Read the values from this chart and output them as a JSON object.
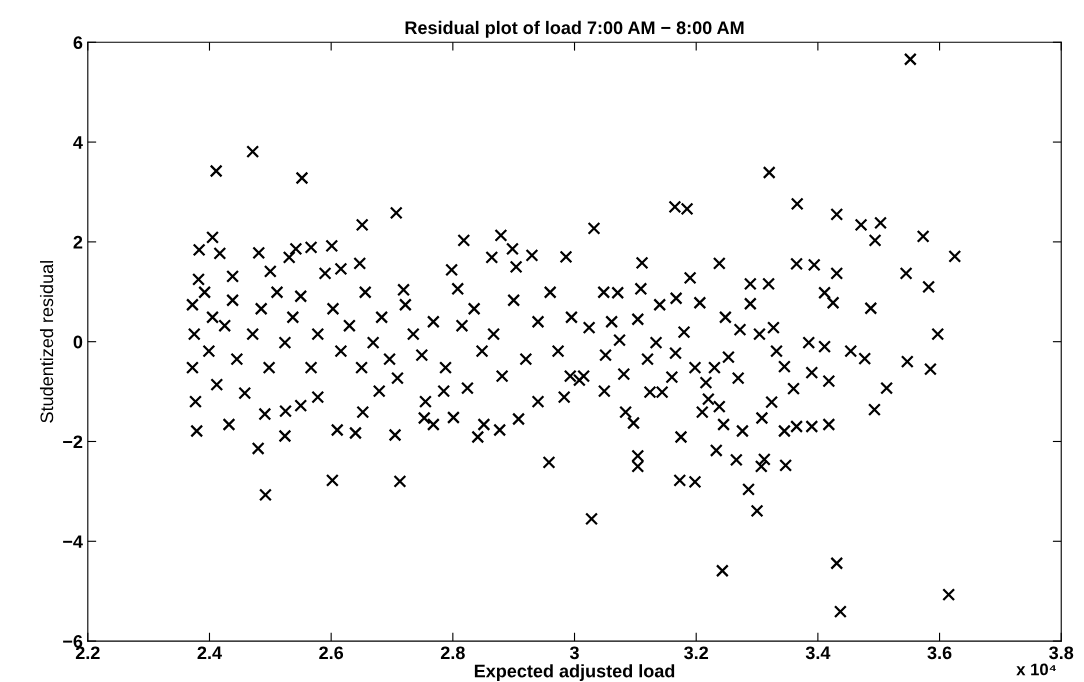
{
  "chart_data": {
    "type": "scatter",
    "title": "Residual plot of load 7:00 AM − 8:00 AM",
    "xlabel": "Expected adjusted load",
    "ylabel": "Studentized residual",
    "annotations": [
      "x 10⁴"
    ],
    "xlim": [
      2.2,
      3.8
    ],
    "xticks": [
      2.2,
      2.4,
      2.6,
      2.8,
      3,
      3.2,
      3.4,
      3.6,
      3.8
    ],
    "ylim": [
      -6,
      6
    ],
    "yticks": [
      {
        "value": -6,
        "label": "−6"
      },
      {
        "value": -4,
        "label": "−4"
      },
      {
        "value": -2,
        "label": "−2"
      },
      0,
      2,
      4,
      6
    ],
    "marker": "cross",
    "grid": false,
    "legend": false,
    "series": [
      {
        "color": "#000000",
        "x": [
          2.411,
          2.471,
          2.552,
          2.707,
          2.651,
          2.602,
          2.713,
          2.492,
          2.48,
          2.524,
          2.61,
          2.64,
          2.705,
          2.958,
          2.879,
          2.818,
          2.898,
          2.93,
          2.986,
          2.601,
          2.567,
          2.542,
          2.531,
          2.481,
          2.405,
          2.383,
          2.417,
          2.5,
          2.382,
          2.438,
          2.59,
          2.616,
          2.647,
          2.798,
          2.808,
          2.864,
          2.904,
          2.719,
          2.379,
          2.432,
          2.491,
          2.525,
          2.55,
          2.578,
          2.652,
          2.753,
          2.768,
          2.801,
          2.841,
          2.851,
          2.877,
          2.908,
          2.94,
          2.983,
          2.824,
          2.785,
          2.755,
          2.679,
          2.709,
          2.372,
          2.375,
          2.372,
          2.377,
          2.392,
          2.405,
          2.399,
          2.412,
          2.425,
          2.438,
          2.445,
          2.458,
          2.471,
          2.485,
          2.498,
          2.511,
          2.524,
          2.537,
          2.55,
          2.567,
          2.578,
          2.603,
          2.616,
          2.63,
          2.65,
          2.656,
          2.669,
          2.683,
          2.696,
          2.722,
          2.735,
          2.749,
          2.768,
          2.788,
          2.815,
          2.835,
          2.848,
          2.867,
          2.881,
          2.9,
          2.92,
          2.94,
          2.96,
          2.973,
          2.993,
          3.552,
          3.32,
          3.366,
          3.165,
          3.185,
          3.032,
          3.431,
          3.471,
          3.503,
          3.494,
          3.573,
          3.625,
          3.545,
          3.582,
          3.111,
          3.238,
          3.365,
          3.394,
          3.431,
          3.19,
          3.289,
          3.319,
          3.411,
          3.425,
          3.487,
          3.597,
          3.547,
          3.585,
          3.513,
          3.493,
          3.385,
          3.411,
          3.454,
          3.477,
          3.39,
          3.418,
          3.36,
          3.345,
          3.327,
          3.289,
          3.248,
          3.272,
          3.304,
          3.332,
          3.253,
          3.23,
          3.269,
          3.324,
          3.308,
          3.345,
          3.365,
          3.39,
          3.418,
          3.276,
          3.245,
          3.238,
          3.22,
          3.21,
          3.216,
          3.198,
          3.175,
          3.233,
          3.266,
          3.312,
          3.347,
          3.307,
          3.286,
          3.3,
          3.173,
          3.198,
          3.104,
          3.104,
          3.028,
          3.243,
          3.431,
          3.437,
          3.615,
          3.084,
          3.097,
          3.049,
          3.081,
          3.124,
          3.144,
          3.16,
          3.12,
          3.074,
          3.051,
          3.008,
          3.015,
          3.024,
          3.048,
          3.071,
          3.109,
          3.14,
          3.167,
          3.206,
          3.061,
          3.104,
          3.134,
          3.166,
          3.18,
          2.995
        ],
        "values": [
          3.42,
          3.81,
          3.28,
          2.58,
          2.34,
          -2.78,
          -2.8,
          -3.07,
          -2.14,
          -1.89,
          -1.77,
          -1.83,
          -1.87,
          -2.42,
          2.13,
          2.03,
          1.86,
          1.73,
          1.7,
          1.92,
          1.89,
          1.86,
          1.69,
          1.78,
          2.09,
          1.84,
          1.77,
          1.41,
          1.25,
          1.31,
          1.37,
          1.46,
          1.57,
          1.44,
          1.06,
          1.69,
          1.5,
          1.04,
          -1.79,
          -1.66,
          -1.45,
          -1.39,
          -1.28,
          -1.11,
          -1.41,
          -1.53,
          -1.66,
          -1.52,
          -1.91,
          -1.66,
          -1.77,
          -1.55,
          -1.2,
          -1.11,
          -0.93,
          -0.99,
          -1.2,
          -0.99,
          -0.73,
          0.74,
          0.15,
          -0.52,
          -1.2,
          0.99,
          0.49,
          -0.19,
          -0.86,
          0.32,
          0.83,
          -0.35,
          -1.03,
          0.15,
          0.66,
          -0.52,
          0.99,
          -0.02,
          0.49,
          0.91,
          -0.52,
          0.15,
          0.66,
          -0.19,
          0.32,
          -0.52,
          0.99,
          -0.02,
          0.49,
          -0.35,
          0.74,
          0.15,
          -0.27,
          0.4,
          -0.52,
          0.32,
          0.66,
          -0.19,
          0.15,
          -0.69,
          0.83,
          -0.35,
          0.4,
          0.99,
          -0.19,
          -0.69,
          5.66,
          3.39,
          2.76,
          2.7,
          2.66,
          2.27,
          2.55,
          2.34,
          2.38,
          2.03,
          2.11,
          1.71,
          1.37,
          1.1,
          1.58,
          1.57,
          1.56,
          1.54,
          1.37,
          1.28,
          1.16,
          1.16,
          0.98,
          0.78,
          0.67,
          0.15,
          -0.4,
          -0.55,
          -0.93,
          -1.36,
          -0.02,
          -0.1,
          -0.19,
          -0.34,
          -0.62,
          -0.79,
          -0.94,
          -0.5,
          0.28,
          0.76,
          0.49,
          0.24,
          0.15,
          -0.19,
          -0.31,
          -0.52,
          -0.73,
          -1.21,
          -1.53,
          -1.79,
          -1.7,
          -1.7,
          -1.66,
          -1.79,
          -1.66,
          -1.3,
          -1.15,
          -1.41,
          -0.82,
          -0.52,
          -1.91,
          -2.18,
          -2.37,
          -2.36,
          -2.48,
          -2.5,
          -2.96,
          -3.39,
          -2.78,
          -2.81,
          -2.29,
          -2.5,
          -3.55,
          -4.59,
          -4.44,
          -5.41,
          -5.07,
          -1.41,
          -1.63,
          -0.99,
          -0.65,
          -1.01,
          -1.01,
          -0.71,
          -0.35,
          0.03,
          -0.27,
          -0.77,
          -0.69,
          0.28,
          0.99,
          0.98,
          1.06,
          0.74,
          0.87,
          0.78,
          0.4,
          0.45,
          -0.02,
          -0.23,
          0.19,
          0.49
        ]
      }
    ]
  }
}
